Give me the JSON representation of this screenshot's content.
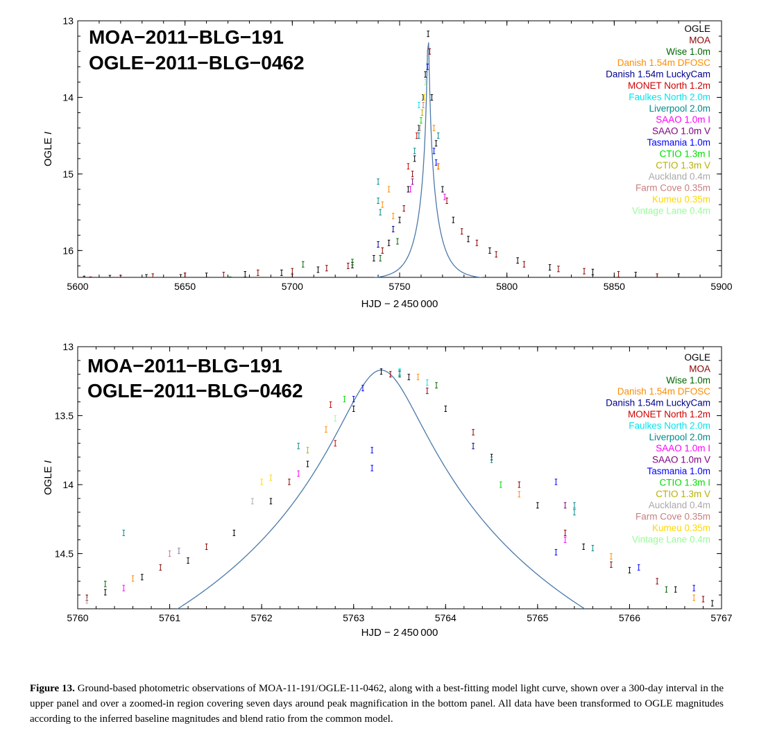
{
  "caption": {
    "label": "Figure 13.",
    "text": "Ground-based photometric observations of MOA-11-191/OGLE-11-0462, along with a best-fitting model light curve, shown over a 300-day interval in the upper panel and over a zoomed-in region covering seven days around peak magnification in the bottom panel. All data have been transformed to OGLE magnitudes according to the inferred baseline magnitudes and blend ratio from the common model."
  },
  "colors": {
    "model_line": "#4a78a8",
    "axes": "#000000"
  },
  "chart_data": [
    {
      "type": "scatter",
      "title_lines": [
        "MOA−2011−BLG−191",
        "OGLE−2011−BLG−0462"
      ],
      "xlabel": "HJD − 2 450 000",
      "ylabel": "OGLE I",
      "xlim": [
        5600,
        5900
      ],
      "ylim": [
        16.35,
        13.0
      ],
      "y_inverted": true,
      "xticks": [
        5600,
        5650,
        5700,
        5750,
        5800,
        5850,
        5900
      ],
      "yticks": [
        13,
        14,
        15,
        16
      ],
      "model": {
        "peak_t": 5763.3,
        "peak_mag": 13.17,
        "baseline_mag": 16.38,
        "tE": 9.5,
        "u0": 0.042
      },
      "legend_placement": "top-right",
      "series": [
        {
          "name": "OGLE",
          "color": "#000000",
          "points": [
            [
              5603,
              16.37
            ],
            [
              5615,
              16.36
            ],
            [
              5632,
              16.35
            ],
            [
              5648,
              16.35
            ],
            [
              5660,
              16.33
            ],
            [
              5678,
              16.31
            ],
            [
              5695,
              16.29
            ],
            [
              5712,
              16.25
            ],
            [
              5728,
              16.19
            ],
            [
              5738,
              16.1
            ],
            [
              5745,
              15.9
            ],
            [
              5750,
              15.6
            ],
            [
              5754,
              15.2
            ],
            [
              5757,
              14.8
            ],
            [
              5759,
              14.4
            ],
            [
              5761,
              14.0
            ],
            [
              5762,
              13.7
            ],
            [
              5763.3,
              13.17
            ],
            [
              5765,
              14.0
            ],
            [
              5767,
              14.6
            ],
            [
              5770,
              15.2
            ],
            [
              5775,
              15.6
            ],
            [
              5782,
              15.85
            ],
            [
              5792,
              16.0
            ],
            [
              5805,
              16.13
            ],
            [
              5820,
              16.22
            ],
            [
              5840,
              16.28
            ],
            [
              5860,
              16.32
            ],
            [
              5880,
              16.34
            ]
          ]
        },
        {
          "name": "MOA",
          "color": "#8b0000",
          "points": [
            [
              5606,
              16.38
            ],
            [
              5620,
              16.36
            ],
            [
              5635,
              16.34
            ],
            [
              5650,
              16.33
            ],
            [
              5668,
              16.32
            ],
            [
              5684,
              16.29
            ],
            [
              5700,
              16.27
            ],
            [
              5716,
              16.23
            ],
            [
              5726,
              16.2
            ],
            [
              5742,
              16.0
            ],
            [
              5752,
              15.45
            ],
            [
              5756,
              15.0
            ],
            [
              5764,
              13.4
            ],
            [
              5768,
              14.9
            ],
            [
              5772,
              15.35
            ],
            [
              5779,
              15.75
            ],
            [
              5786,
              15.9
            ],
            [
              5795,
              16.05
            ],
            [
              5808,
              16.18
            ],
            [
              5824,
              16.24
            ],
            [
              5836,
              16.27
            ],
            [
              5852,
              16.31
            ],
            [
              5870,
              16.34
            ]
          ]
        },
        {
          "name": "Wise 1.0m",
          "color": "#006400",
          "points": [
            [
              5664,
              16.4
            ],
            [
              5671,
              16.38
            ],
            [
              5705,
              16.18
            ],
            [
              5728,
              16.15
            ],
            [
              5741,
              16.1
            ],
            [
              5749,
              15.88
            ]
          ]
        },
        {
          "name": "Danish 1.54m DFOSC",
          "color": "#ff8c00",
          "points": [
            [
              5742,
              15.4
            ],
            [
              5745,
              15.2
            ],
            [
              5747,
              15.55
            ],
            [
              5766,
              14.4
            ],
            [
              5768,
              14.9
            ]
          ]
        },
        {
          "name": "Danish 1.54m LuckyCam",
          "color": "#00008b",
          "points": [
            [
              5740,
              15.92
            ],
            [
              5747,
              15.72
            ]
          ]
        },
        {
          "name": "MONET North 1.2m",
          "color": "#cc0000",
          "points": [
            [
              5754,
              14.9
            ],
            [
              5758,
              14.5
            ]
          ]
        },
        {
          "name": "Faulkes North 2.0m",
          "color": "#00e5ee",
          "points": [
            [
              5759,
              14.1
            ]
          ]
        },
        {
          "name": "Liverpool 2.0m",
          "color": "#008b8b",
          "points": [
            [
              5740,
              15.1
            ],
            [
              5740,
              15.35
            ],
            [
              5741,
              15.5
            ],
            [
              5757,
              14.7
            ],
            [
              5759,
              14.5
            ],
            [
              5768,
              14.5
            ]
          ]
        },
        {
          "name": "SAAO 1.0m I",
          "color": "#ff00ff",
          "points": [
            [
              5755,
              15.2
            ],
            [
              5771,
              15.3
            ]
          ]
        },
        {
          "name": "SAAO 1.0m V",
          "color": "#800080",
          "points": [
            [
              5756,
              15.1
            ]
          ]
        },
        {
          "name": "Tasmania 1.0m",
          "color": "#0000ff",
          "points": [
            [
              5763,
              13.6
            ],
            [
              5766,
              14.7
            ],
            [
              5767,
              14.85
            ]
          ]
        },
        {
          "name": "CTIO 1.3m I",
          "color": "#00dd00",
          "points": [
            [
              5760,
              14.3
            ]
          ]
        },
        {
          "name": "CTIO 1.3m V",
          "color": "#b8b000",
          "points": [
            [
              5760.5,
              14.2
            ]
          ]
        },
        {
          "name": "Auckland 0.4m",
          "color": "#aaaaaa",
          "points": [
            [
              5759.5,
              14.4
            ]
          ]
        },
        {
          "name": "Farm Cove 0.35m",
          "color": "#c78080",
          "points": [
            [
              5761,
              14.1
            ]
          ]
        },
        {
          "name": "Kumeu 0.35m",
          "color": "#ffd700",
          "points": [
            [
              5761.5,
              14.0
            ]
          ]
        },
        {
          "name": "Vintage Lane 0.4m",
          "color": "#98fb98",
          "points": [
            [
              5762,
              13.8
            ]
          ]
        }
      ]
    },
    {
      "type": "scatter",
      "title_lines": [
        "MOA−2011−BLG−191",
        "OGLE−2011−BLG−0462"
      ],
      "xlabel": "HJD − 2 450 000",
      "ylabel": "OGLE I",
      "xlim": [
        5760,
        5767
      ],
      "ylim": [
        14.9,
        13.0
      ],
      "y_inverted": true,
      "xticks": [
        5760,
        5761,
        5762,
        5763,
        5764,
        5765,
        5766,
        5767
      ],
      "yticks": [
        13,
        13.5,
        14,
        14.5
      ],
      "ytick_labels": [
        "13",
        "13.5",
        "14",
        "14.5"
      ],
      "model": {
        "peak_t": 5763.3,
        "peak_mag": 13.17,
        "baseline_mag": 16.38,
        "tE": 9.5,
        "u0": 0.042
      },
      "legend_placement": "top-right",
      "series": [
        {
          "name": "OGLE",
          "color": "#000000",
          "points": [
            [
              5760.3,
              14.78
            ],
            [
              5760.7,
              14.67
            ],
            [
              5761.2,
              14.55
            ],
            [
              5761.7,
              14.35
            ],
            [
              5762.1,
              14.12
            ],
            [
              5762.5,
              13.85
            ],
            [
              5763.0,
              13.45
            ],
            [
              5763.3,
              13.18
            ],
            [
              5763.6,
              13.22
            ],
            [
              5764.0,
              13.45
            ],
            [
              5764.5,
              13.8
            ],
            [
              5765.0,
              14.15
            ],
            [
              5765.5,
              14.45
            ],
            [
              5766.0,
              14.62
            ],
            [
              5766.5,
              14.76
            ],
            [
              5766.9,
              14.86
            ]
          ]
        },
        {
          "name": "MOA",
          "color": "#8b0000",
          "points": [
            [
              5760.1,
              14.82
            ],
            [
              5760.9,
              14.6
            ],
            [
              5761.4,
              14.45
            ],
            [
              5762.3,
              13.98
            ],
            [
              5763.4,
              13.2
            ],
            [
              5763.8,
              13.32
            ],
            [
              5764.3,
              13.62
            ],
            [
              5764.8,
              14.0
            ],
            [
              5765.3,
              14.35
            ],
            [
              5765.8,
              14.58
            ],
            [
              5766.3,
              14.7
            ],
            [
              5766.8,
              14.83
            ]
          ]
        },
        {
          "name": "Wise 1.0m",
          "color": "#006400",
          "points": [
            [
              5760.3,
              14.72
            ],
            [
              5763.5,
              13.2
            ],
            [
              5763.9,
              13.28
            ],
            [
              5766.4,
              14.76
            ]
          ]
        },
        {
          "name": "Danish 1.54m DFOSC",
          "color": "#ff8c00",
          "points": [
            [
              5760.6,
              14.68
            ],
            [
              5762.7,
              13.6
            ],
            [
              5763.7,
              13.22
            ],
            [
              5764.8,
              14.07
            ],
            [
              5765.8,
              14.52
            ],
            [
              5766.7,
              14.82
            ]
          ]
        },
        {
          "name": "Danish 1.54m LuckyCam",
          "color": "#00008b",
          "points": [
            [
              5764.3,
              13.72
            ]
          ]
        },
        {
          "name": "MONET North 1.2m",
          "color": "#cc0000",
          "points": [
            [
              5762.8,
              13.7
            ],
            [
              5762.75,
              13.42
            ]
          ]
        },
        {
          "name": "Faulkes North 2.0m",
          "color": "#00e5ee",
          "points": [
            [
              5763.5,
              13.18
            ],
            [
              5763.8,
              13.26
            ]
          ]
        },
        {
          "name": "Liverpool 2.0m",
          "color": "#008b8b",
          "points": [
            [
              5760.5,
              14.35
            ],
            [
              5762.4,
              13.72
            ],
            [
              5763.5,
              13.19
            ],
            [
              5764.5,
              13.82
            ],
            [
              5765.4,
              14.15
            ],
            [
              5765.4,
              14.2
            ],
            [
              5765.6,
              14.46
            ]
          ]
        },
        {
          "name": "SAAO 1.0m I",
          "color": "#ff00ff",
          "points": [
            [
              5760.5,
              14.75
            ],
            [
              5762.4,
              13.92
            ],
            [
              5765.3,
              14.4
            ]
          ]
        },
        {
          "name": "SAAO 1.0m V",
          "color": "#800080",
          "points": [
            [
              5765.3,
              14.15
            ]
          ]
        },
        {
          "name": "Tasmania 1.0m",
          "color": "#0000ff",
          "points": [
            [
              5761.1,
              14.48
            ],
            [
              5763.0,
              13.38
            ],
            [
              5763.1,
              13.3
            ],
            [
              5763.2,
              13.75
            ],
            [
              5763.2,
              13.88
            ],
            [
              5765.2,
              13.98
            ],
            [
              5765.2,
              14.49
            ],
            [
              5766.1,
              14.6
            ],
            [
              5766.7,
              14.75
            ]
          ]
        },
        {
          "name": "CTIO 1.3m I",
          "color": "#00dd00",
          "points": [
            [
              5762.9,
              13.38
            ],
            [
              5764.6,
              14.0
            ]
          ]
        },
        {
          "name": "CTIO 1.3m V",
          "color": "#b8b000",
          "points": [
            [
              5762.5,
              13.75
            ]
          ]
        },
        {
          "name": "Auckland 0.4m",
          "color": "#aaaaaa",
          "points": [
            [
              5760.1,
              14.84
            ],
            [
              5761.1,
              14.48
            ],
            [
              5761.9,
              14.12
            ]
          ]
        },
        {
          "name": "Farm Cove 0.35m",
          "color": "#c78080",
          "points": [
            [
              5761.0,
              14.5
            ]
          ]
        },
        {
          "name": "Kumeu 0.35m",
          "color": "#ffd700",
          "points": [
            [
              5762.0,
              13.98
            ],
            [
              5762.1,
              13.95
            ]
          ]
        },
        {
          "name": "Vintage Lane 0.4m",
          "color": "#98fb98",
          "points": [
            [
              5762.8,
              13.52
            ]
          ]
        }
      ]
    }
  ]
}
